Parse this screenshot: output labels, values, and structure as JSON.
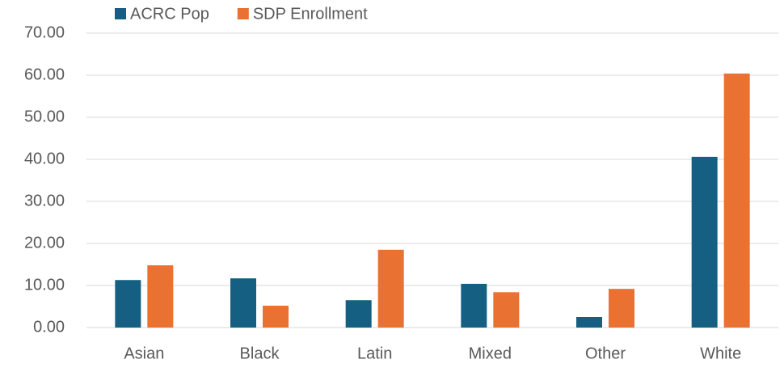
{
  "chart_data": {
    "type": "bar",
    "categories": [
      "Asian",
      "Black",
      "Latin",
      "Mixed",
      "Other",
      "White"
    ],
    "series": [
      {
        "name": "ACRC Pop",
        "color": "#156082",
        "values": [
          11.3,
          11.7,
          6.5,
          10.4,
          2.5,
          40.6
        ]
      },
      {
        "name": "SDP Enrollment",
        "color": "#e97132",
        "values": [
          14.8,
          5.2,
          18.5,
          8.4,
          9.2,
          60.4
        ]
      }
    ],
    "ylim": [
      0,
      70
    ],
    "yticks": [
      {
        "value": 0,
        "label": "0.00"
      },
      {
        "value": 10,
        "label": "10.00"
      },
      {
        "value": 20,
        "label": "20.00"
      },
      {
        "value": 30,
        "label": "30.00"
      },
      {
        "value": 40,
        "label": "40.00"
      },
      {
        "value": 50,
        "label": "50.00"
      },
      {
        "value": 60,
        "label": "60.00"
      },
      {
        "value": 70,
        "label": "70.00"
      }
    ],
    "grid": true,
    "legend": "top"
  }
}
